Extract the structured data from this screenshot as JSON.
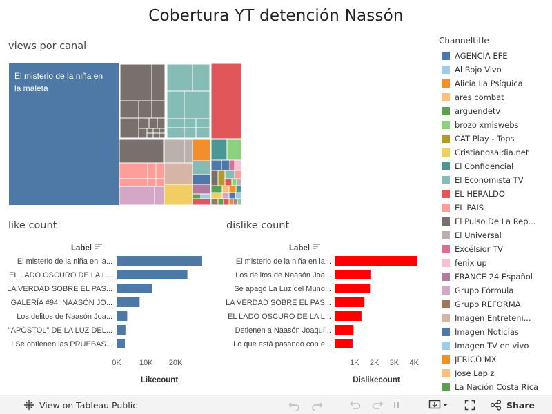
{
  "title": "Cobertura  YT detención Nassón",
  "treemap": {
    "title": "views por canal",
    "big_label_line1": "El misterio de la niña en",
    "big_label_line2": "la maleta"
  },
  "legend": {
    "title": "Channeltitle",
    "items": [
      {
        "label": "AGENCIA EFE",
        "color": "#4e79a7"
      },
      {
        "label": "Al Rojo Vivo",
        "color": "#a0cbe8"
      },
      {
        "label": "Alicia La Psíquica",
        "color": "#f28e2b"
      },
      {
        "label": "ares combat",
        "color": "#ffbe7d"
      },
      {
        "label": "arguendetv",
        "color": "#59a14f"
      },
      {
        "label": "brozo xmiswebs",
        "color": "#8cd17d"
      },
      {
        "label": "CAT Play - Tops",
        "color": "#b6992d"
      },
      {
        "label": "Cristianosaldia.net",
        "color": "#f1ce63"
      },
      {
        "label": "El Confidencial",
        "color": "#499894"
      },
      {
        "label": "El Economista TV",
        "color": "#86bcb6"
      },
      {
        "label": "EL HERALDO",
        "color": "#e15759"
      },
      {
        "label": "EL PAIS",
        "color": "#ff9d9a"
      },
      {
        "label": "El Pulso De La Rep...",
        "color": "#79706e"
      },
      {
        "label": "El Universal",
        "color": "#bab0ac"
      },
      {
        "label": "Excélsior TV",
        "color": "#d37295"
      },
      {
        "label": "fenix up",
        "color": "#fabfd2"
      },
      {
        "label": "FRANCE 24 Español",
        "color": "#b07aa1"
      },
      {
        "label": "Grupo Fórmula",
        "color": "#d4a6c8"
      },
      {
        "label": "Grupo REFORMA",
        "color": "#9d7660"
      },
      {
        "label": "Imagen Entreteni...",
        "color": "#d7b5a6"
      },
      {
        "label": "Imagen Noticias",
        "color": "#4e79a7"
      },
      {
        "label": "Imagen TV en vivo",
        "color": "#a0cbe8"
      },
      {
        "label": "JERICÓ MX",
        "color": "#f28e2b"
      },
      {
        "label": "Jose Lapiz",
        "color": "#ffbe7d"
      },
      {
        "label": "La Nación Costa Rica",
        "color": "#59a14f"
      }
    ]
  },
  "like_section_title": "like count",
  "dislike_section_title": "dislike count",
  "chart_data": [
    {
      "type": "bar",
      "orientation": "horizontal",
      "title": "like count",
      "sort_header": "Label",
      "xlabel": "Likecount",
      "categories": [
        "El misterio de la niña en la...",
        "EL LADO OSCURO DE LA L...",
        "LA VERDAD SOBRE EL PAS...",
        "GALERÍA #94: NAASÓN JO...",
        "Los delitos de Naasón Joa...",
        "\"APÓSTOL\" DE LA LUZ DEL...",
        "! Se obtienen las PRUEBAS..."
      ],
      "values": [
        29000,
        24000,
        12000,
        7800,
        3600,
        3000,
        2800
      ],
      "xlim": [
        0,
        29000
      ],
      "ticks": [
        0,
        10000,
        20000
      ],
      "tick_labels": [
        "0K",
        "10K",
        "20K"
      ],
      "color": "#4e79a7"
    },
    {
      "type": "bar",
      "orientation": "horizontal",
      "title": "dislike count",
      "sort_header": "Label",
      "xlabel": "Dislikecount",
      "categories": [
        "El misterio de la niña en la...",
        "Los delitos de Naasón Joa...",
        "Se apagó La Luz del Mund...",
        "LA VERDAD SOBRE EL PAS...",
        "EL LADO OSCURO DE LA L...",
        "Detienen a Naasón Joaquí...",
        "Lo que está pasando con e..."
      ],
      "values": [
        4150,
        1800,
        1780,
        1500,
        1350,
        950,
        900
      ],
      "xlim": [
        0,
        4200
      ],
      "ticks": [
        1000,
        2000,
        3000,
        4000
      ],
      "tick_labels": [
        "1K",
        "2K",
        "3K",
        "4K"
      ],
      "color": "#ff0000"
    }
  ],
  "toolbar": {
    "view_label": "View on Tableau Public",
    "share_label": "Share"
  }
}
